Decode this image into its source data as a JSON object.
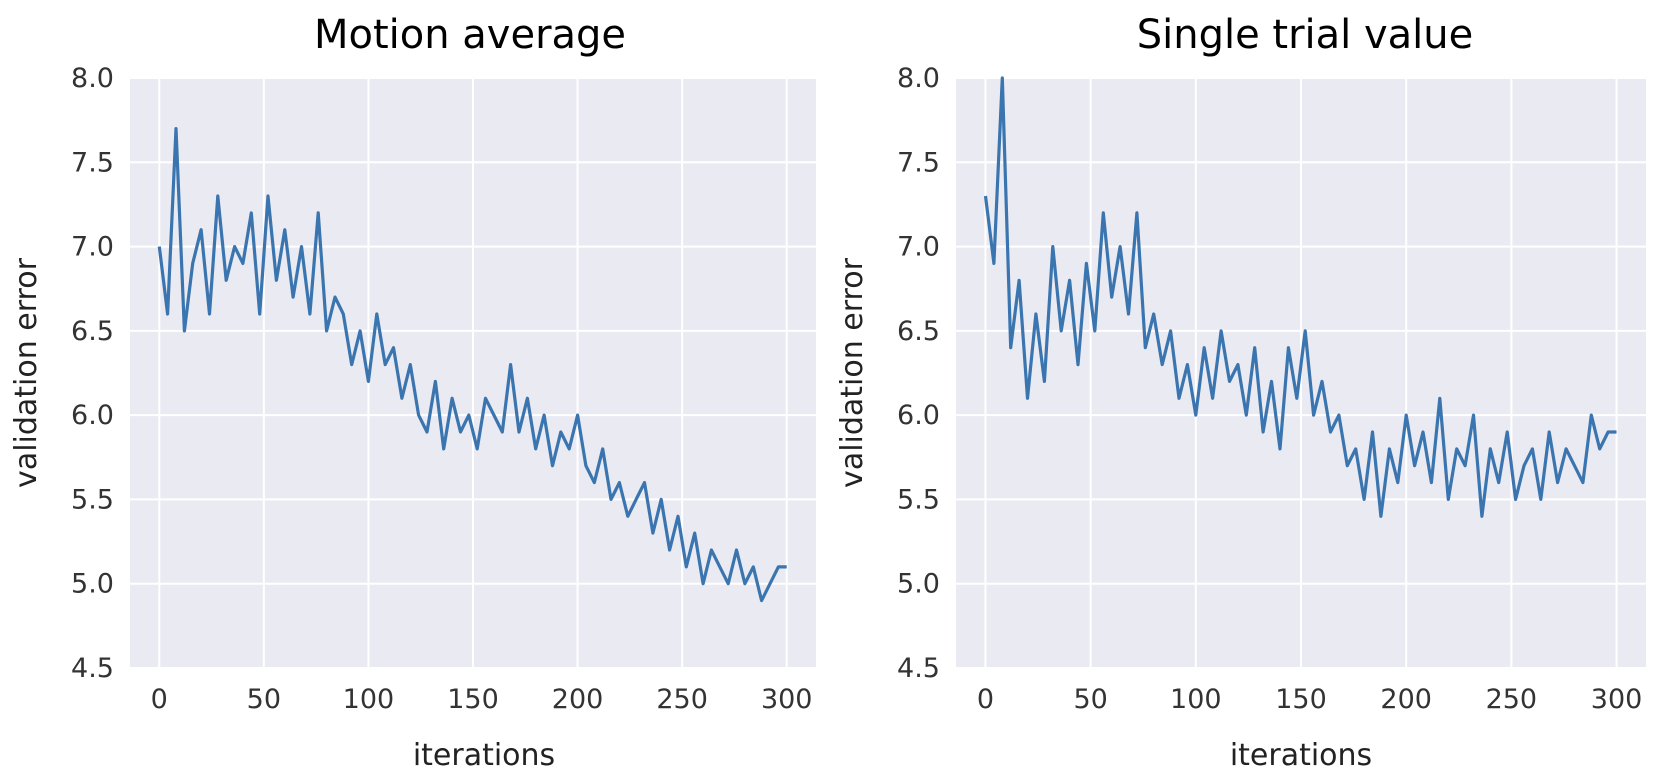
{
  "chart_data": [
    {
      "type": "line",
      "title": "Motion average",
      "xlabel": "iterations",
      "ylabel": "validation error",
      "xlim": [
        -14,
        314
      ],
      "ylim": [
        4.5,
        8.0
      ],
      "xticks": [
        0,
        50,
        100,
        150,
        200,
        250,
        300
      ],
      "yticks": [
        4.5,
        5.0,
        5.5,
        6.0,
        6.5,
        7.0,
        7.5,
        8.0
      ],
      "ytick_labels": [
        "4.5",
        "5.0",
        "5.5",
        "6.0",
        "6.5",
        "7.0",
        "7.5",
        "8.0"
      ],
      "grid": true,
      "color": "#3b75af",
      "series": [
        {
          "name": "validation error",
          "x": [
            0,
            4,
            8,
            12,
            16,
            20,
            24,
            28,
            32,
            36,
            40,
            44,
            48,
            52,
            56,
            60,
            64,
            68,
            72,
            76,
            80,
            84,
            88,
            92,
            96,
            100,
            104,
            108,
            112,
            116,
            120,
            124,
            128,
            132,
            136,
            140,
            144,
            148,
            152,
            156,
            160,
            164,
            168,
            172,
            176,
            180,
            184,
            188,
            192,
            196,
            200,
            204,
            208,
            212,
            216,
            220,
            224,
            228,
            232,
            236,
            240,
            244,
            248,
            252,
            256,
            260,
            264,
            268,
            272,
            276,
            280,
            284,
            288,
            292,
            296,
            300
          ],
          "values": [
            7.0,
            6.6,
            7.7,
            6.5,
            6.9,
            7.1,
            6.6,
            7.3,
            6.8,
            7.0,
            6.9,
            7.2,
            6.6,
            7.3,
            6.8,
            7.1,
            6.7,
            7.0,
            6.6,
            7.2,
            6.5,
            6.7,
            6.6,
            6.3,
            6.5,
            6.2,
            6.6,
            6.3,
            6.4,
            6.1,
            6.3,
            6.0,
            5.9,
            6.2,
            5.8,
            6.1,
            5.9,
            6.0,
            5.8,
            6.1,
            6.0,
            5.9,
            6.3,
            5.9,
            6.1,
            5.8,
            6.0,
            5.7,
            5.9,
            5.8,
            6.0,
            5.7,
            5.6,
            5.8,
            5.5,
            5.6,
            5.4,
            5.5,
            5.6,
            5.3,
            5.5,
            5.2,
            5.4,
            5.1,
            5.3,
            5.0,
            5.2,
            5.1,
            5.0,
            5.2,
            5.0,
            5.1,
            4.9,
            5.0,
            5.1,
            5.1
          ]
        }
      ]
    },
    {
      "type": "line",
      "title": "Single trial value",
      "xlabel": "iterations",
      "ylabel": "validation error",
      "xlim": [
        -14,
        314
      ],
      "ylim": [
        4.5,
        8.0
      ],
      "xticks": [
        0,
        50,
        100,
        150,
        200,
        250,
        300
      ],
      "yticks": [
        4.5,
        5.0,
        5.5,
        6.0,
        6.5,
        7.0,
        7.5,
        8.0
      ],
      "ytick_labels": [
        "4.5",
        "5.0",
        "5.5",
        "6.0",
        "6.5",
        "7.0",
        "7.5",
        "8.0"
      ],
      "grid": true,
      "color": "#3b75af",
      "series": [
        {
          "name": "validation error",
          "x": [
            0,
            4,
            8,
            12,
            16,
            20,
            24,
            28,
            32,
            36,
            40,
            44,
            48,
            52,
            56,
            60,
            64,
            68,
            72,
            76,
            80,
            84,
            88,
            92,
            96,
            100,
            104,
            108,
            112,
            116,
            120,
            124,
            128,
            132,
            136,
            140,
            144,
            148,
            152,
            156,
            160,
            164,
            168,
            172,
            176,
            180,
            184,
            188,
            192,
            196,
            200,
            204,
            208,
            212,
            216,
            220,
            224,
            228,
            232,
            236,
            240,
            244,
            248,
            252,
            256,
            260,
            264,
            268,
            272,
            276,
            280,
            284,
            288,
            292,
            296,
            300
          ],
          "values": [
            7.3,
            6.9,
            8.0,
            6.4,
            6.8,
            6.1,
            6.6,
            6.2,
            7.0,
            6.5,
            6.8,
            6.3,
            6.9,
            6.5,
            7.2,
            6.7,
            7.0,
            6.6,
            7.2,
            6.4,
            6.6,
            6.3,
            6.5,
            6.1,
            6.3,
            6.0,
            6.4,
            6.1,
            6.5,
            6.2,
            6.3,
            6.0,
            6.4,
            5.9,
            6.2,
            5.8,
            6.4,
            6.1,
            6.5,
            6.0,
            6.2,
            5.9,
            6.0,
            5.7,
            5.8,
            5.5,
            5.9,
            5.4,
            5.8,
            5.6,
            6.0,
            5.7,
            5.9,
            5.6,
            6.1,
            5.5,
            5.8,
            5.7,
            6.0,
            5.4,
            5.8,
            5.6,
            5.9,
            5.5,
            5.7,
            5.8,
            5.5,
            5.9,
            5.6,
            5.8,
            5.7,
            5.6,
            6.0,
            5.8,
            5.9,
            5.9
          ]
        }
      ]
    }
  ]
}
